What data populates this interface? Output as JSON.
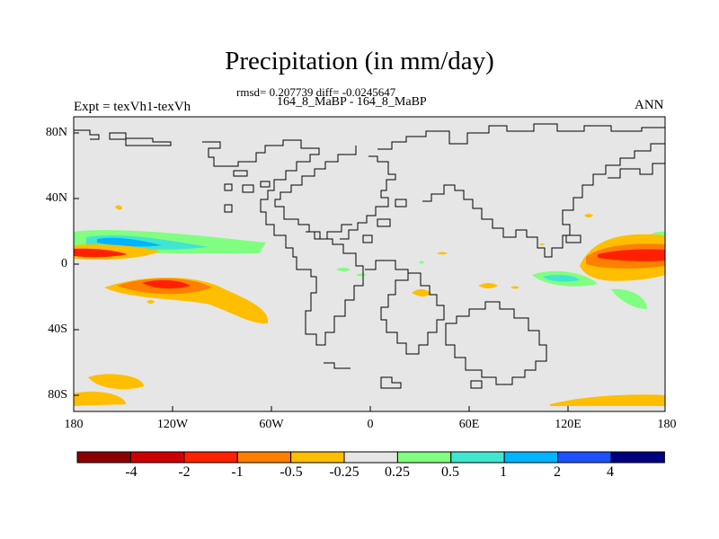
{
  "title": "Precipitation (in mm/day)",
  "stats": "rmsd= 0.207739 diff= -0.0245647",
  "case_label": "164_8_MaBP - 164_8_MaBP",
  "experiment": "Expt = texVh1-texVh",
  "season": "ANN",
  "map": {
    "lat_labels": [
      "80N",
      "40N",
      "0",
      "40S",
      "80S"
    ],
    "lon_labels": [
      "180",
      "120W",
      "60W",
      "0",
      "60E",
      "120E",
      "180"
    ],
    "land_color": "#e6e6e6",
    "outline_color": "#000000"
  },
  "colorbar": {
    "levels": [
      "-4",
      "-2",
      "-1",
      "-0.5",
      "-0.25",
      "0.25",
      "0.5",
      "1",
      "2",
      "4"
    ],
    "colors": [
      "#8b0000",
      "#cd0000",
      "#ff2000",
      "#ff7f00",
      "#ffbe00",
      "#e6e6e6",
      "#80ff80",
      "#40e6d0",
      "#00b4ff",
      "#1e50ff",
      "#000080"
    ]
  },
  "field_colors": {
    "orange": "#ffbe00",
    "dark_orange": "#ff7f00",
    "red": "#ff2000",
    "green": "#80ff80",
    "cyan": "#40e6d0",
    "blue": "#00b4ff"
  }
}
